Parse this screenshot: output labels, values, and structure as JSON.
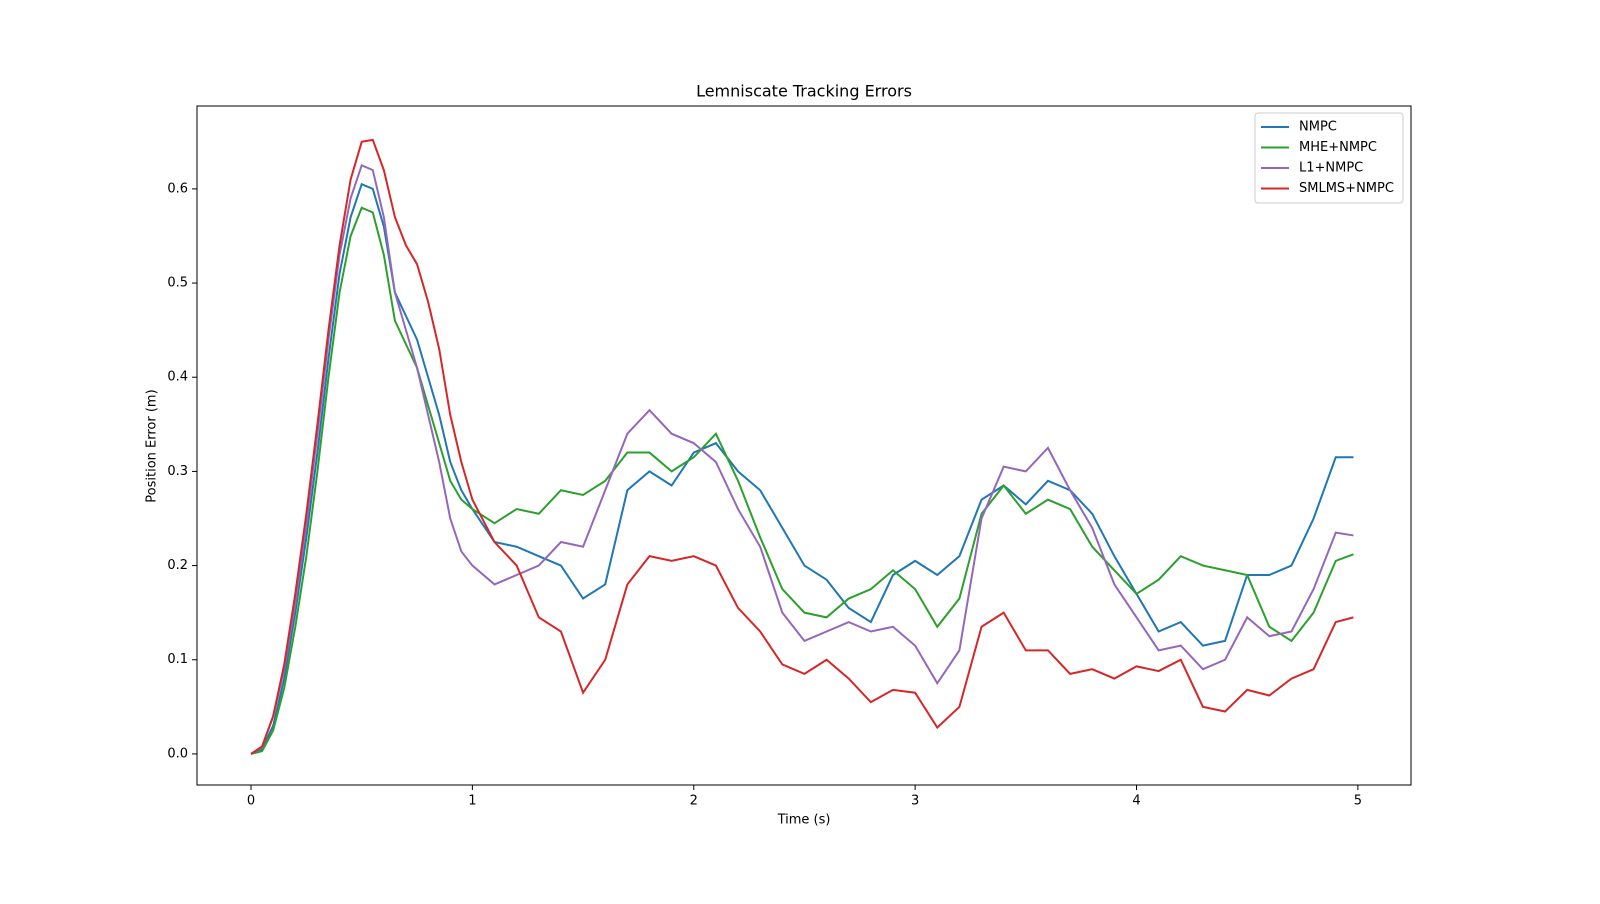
{
  "chart_data": {
    "type": "line",
    "title": "Lemniscate Tracking Errors",
    "xlabel": "Time (s)",
    "ylabel": "Position Error (m)",
    "x": [
      0,
      0.05,
      0.1,
      0.15,
      0.2,
      0.25,
      0.3,
      0.35,
      0.4,
      0.45,
      0.5,
      0.55,
      0.6,
      0.65,
      0.7,
      0.75,
      0.8,
      0.85,
      0.9,
      0.95,
      1.0,
      1.1,
      1.2,
      1.3,
      1.4,
      1.5,
      1.6,
      1.7,
      1.8,
      1.9,
      2.0,
      2.1,
      2.2,
      2.3,
      2.4,
      2.5,
      2.6,
      2.7,
      2.8,
      2.9,
      3.0,
      3.1,
      3.2,
      3.3,
      3.4,
      3.5,
      3.6,
      3.7,
      3.8,
      3.9,
      4.0,
      4.1,
      4.2,
      4.3,
      4.4,
      4.5,
      4.6,
      4.7,
      4.8,
      4.9,
      4.98
    ],
    "series": [
      {
        "name": "NMPC",
        "color": "#1f77b4",
        "values": [
          0,
          0.005,
          0.03,
          0.08,
          0.15,
          0.23,
          0.32,
          0.42,
          0.51,
          0.57,
          0.605,
          0.6,
          0.56,
          0.49,
          0.465,
          0.44,
          0.4,
          0.36,
          0.31,
          0.28,
          0.26,
          0.225,
          0.22,
          0.21,
          0.2,
          0.165,
          0.18,
          0.28,
          0.3,
          0.285,
          0.32,
          0.33,
          0.3,
          0.28,
          0.24,
          0.2,
          0.185,
          0.155,
          0.14,
          0.19,
          0.205,
          0.19,
          0.21,
          0.27,
          0.285,
          0.265,
          0.29,
          0.28,
          0.255,
          0.21,
          0.17,
          0.13,
          0.14,
          0.115,
          0.12,
          0.19,
          0.19,
          0.2,
          0.25,
          0.315,
          0.315
        ]
      },
      {
        "name": "MHE+NMPC",
        "color": "#2ca02c",
        "values": [
          0,
          0.003,
          0.025,
          0.07,
          0.135,
          0.21,
          0.3,
          0.4,
          0.49,
          0.55,
          0.58,
          0.575,
          0.53,
          0.46,
          0.435,
          0.41,
          0.37,
          0.33,
          0.29,
          0.27,
          0.26,
          0.245,
          0.26,
          0.255,
          0.28,
          0.275,
          0.29,
          0.32,
          0.32,
          0.3,
          0.315,
          0.34,
          0.29,
          0.23,
          0.175,
          0.15,
          0.145,
          0.165,
          0.175,
          0.195,
          0.175,
          0.135,
          0.165,
          0.255,
          0.285,
          0.255,
          0.27,
          0.26,
          0.22,
          0.195,
          0.17,
          0.185,
          0.21,
          0.2,
          0.195,
          0.19,
          0.135,
          0.12,
          0.15,
          0.205,
          0.212
        ]
      },
      {
        "name": "L1+NMPC",
        "color": "#9467bd",
        "values": [
          0,
          0.007,
          0.04,
          0.09,
          0.16,
          0.245,
          0.34,
          0.44,
          0.53,
          0.59,
          0.625,
          0.62,
          0.57,
          0.49,
          0.45,
          0.41,
          0.36,
          0.31,
          0.25,
          0.215,
          0.2,
          0.18,
          0.19,
          0.2,
          0.225,
          0.22,
          0.28,
          0.34,
          0.365,
          0.34,
          0.33,
          0.31,
          0.26,
          0.22,
          0.15,
          0.12,
          0.13,
          0.14,
          0.13,
          0.135,
          0.115,
          0.075,
          0.11,
          0.25,
          0.305,
          0.3,
          0.325,
          0.28,
          0.24,
          0.18,
          0.145,
          0.11,
          0.115,
          0.09,
          0.1,
          0.145,
          0.125,
          0.13,
          0.175,
          0.235,
          0.232
        ]
      },
      {
        "name": "SMLMS+NMPC",
        "color": "#d62728",
        "values": [
          0,
          0.008,
          0.04,
          0.095,
          0.17,
          0.255,
          0.35,
          0.45,
          0.54,
          0.61,
          0.65,
          0.652,
          0.62,
          0.57,
          0.54,
          0.52,
          0.48,
          0.43,
          0.36,
          0.31,
          0.27,
          0.225,
          0.2,
          0.145,
          0.13,
          0.065,
          0.1,
          0.18,
          0.21,
          0.205,
          0.21,
          0.2,
          0.155,
          0.13,
          0.095,
          0.085,
          0.1,
          0.08,
          0.055,
          0.068,
          0.065,
          0.028,
          0.05,
          0.135,
          0.15,
          0.11,
          0.11,
          0.085,
          0.09,
          0.08,
          0.093,
          0.088,
          0.1,
          0.05,
          0.045,
          0.068,
          0.062,
          0.08,
          0.09,
          0.14,
          0.145
        ]
      }
    ],
    "xlim": [
      -0.244,
      5.24
    ],
    "ylim": [
      -0.033,
      0.688
    ],
    "xticks": [
      0,
      1,
      2,
      3,
      4,
      5
    ],
    "yticks": [
      {
        "value": 0,
        "label": "0.0"
      },
      0.1,
      0.2,
      0.3,
      0.4,
      0.5,
      0.6
    ],
    "legend": "upper right"
  }
}
